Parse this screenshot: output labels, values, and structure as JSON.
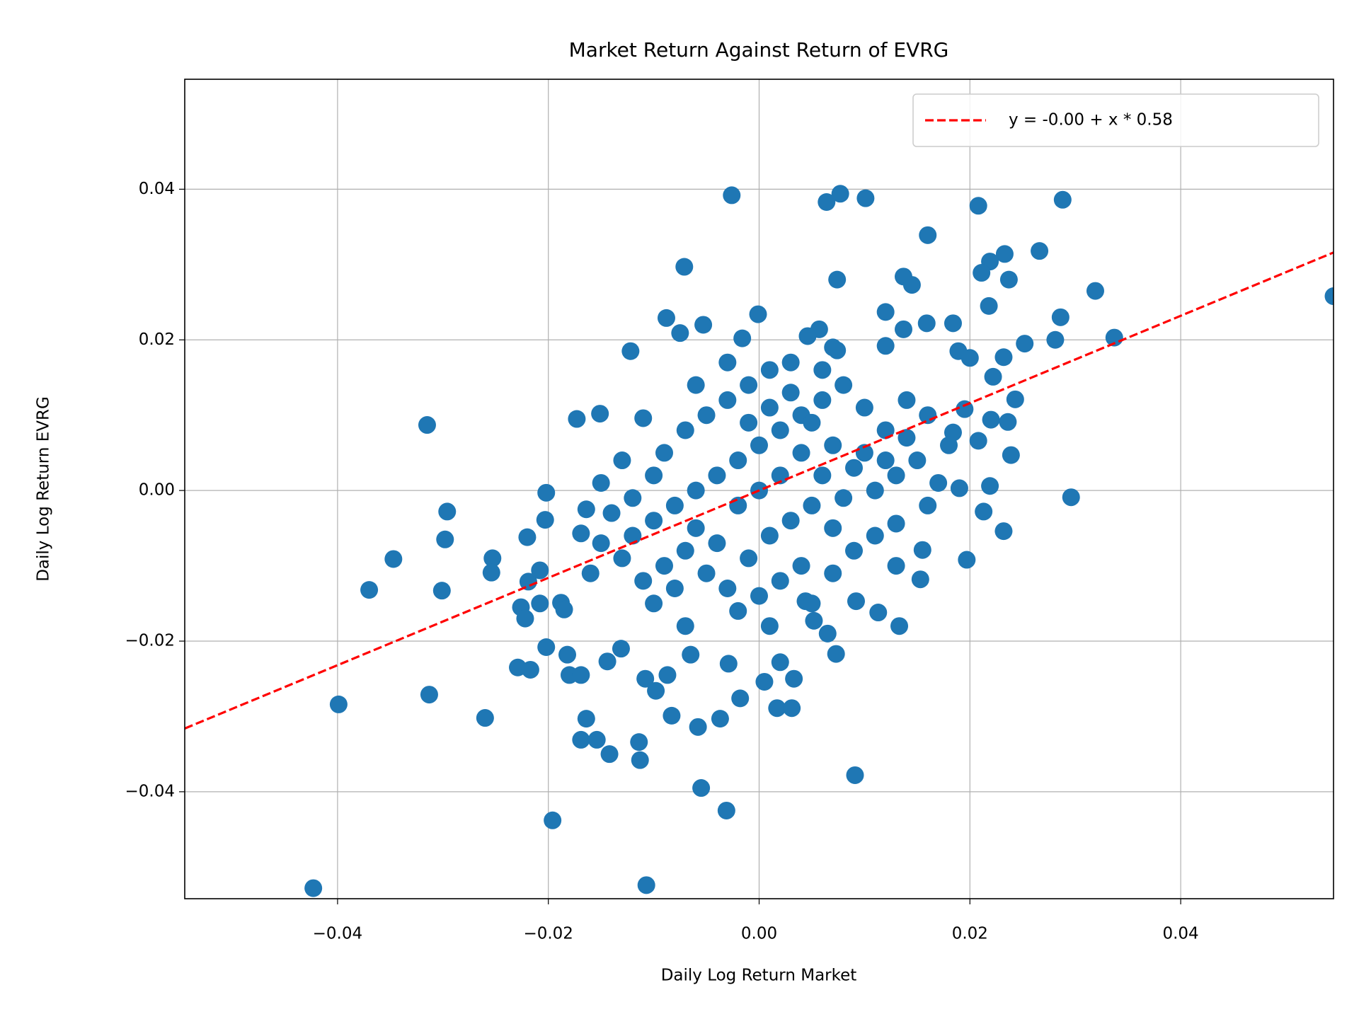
{
  "chart_data": {
    "type": "scatter",
    "title": "Market Return Against Return of EVRG",
    "x_label": "Daily Log Return Market",
    "y_label": "Daily Log Return EVRG",
    "xlim": [
      -0.0545,
      0.0545
    ],
    "ylim": [
      -0.0542,
      0.0546
    ],
    "xticks": [
      {
        "value": -0.04,
        "label": "−0.04"
      },
      {
        "value": -0.02,
        "label": "−0.02"
      },
      {
        "value": 0,
        "label": "0.00"
      },
      {
        "value": 0.02,
        "label": "0.02"
      },
      {
        "value": 0.04,
        "label": "0.04"
      }
    ],
    "yticks": [
      {
        "value": -0.04,
        "label": "−0.04"
      },
      {
        "value": -0.02,
        "label": "−0.02"
      },
      {
        "value": 0,
        "label": "0.00"
      },
      {
        "value": 0.02,
        "label": "0.02"
      },
      {
        "value": 0.04,
        "label": "0.04"
      }
    ],
    "grid": true,
    "legend": "upper right",
    "color": "#1f77b4",
    "x": [
      -0.0423,
      -0.0107,
      -0.0196,
      -0.0031,
      -0.0055,
      0.0091,
      -0.0113,
      -0.0142,
      -0.0114,
      -0.0169,
      -0.0154,
      -0.0164,
      -0.026,
      -0.0083,
      -0.0058,
      -0.0037,
      0.0017,
      0.0031,
      -0.0018,
      0.0005,
      0.0033,
      -0.0399,
      -0.0313,
      -0.0229,
      -0.0217,
      -0.0202,
      -0.018,
      -0.0169,
      -0.0144,
      -0.0131,
      -0.0182,
      -0.0108,
      -0.0087,
      -0.0098,
      -0.0065,
      -0.0029,
      0.002,
      0.0073,
      0.0065,
      0.0052,
      0.0044,
      0.0092,
      0.0113,
      0.0133,
      0.0153,
      0.0197,
      0.0155,
      0.013,
      0.0232,
      0.0213,
      0.0296,
      0.0219,
      0.019,
      0.0239,
      0.0236,
      0.022,
      0.0243,
      0.0195,
      0.0184,
      0.0208,
      0.0222,
      0.0232,
      0.0252,
      0.0281,
      0.0337,
      0.0545,
      0.0319,
      0.0286,
      0.0266,
      0.0237,
      0.0233,
      0.0219,
      0.0211,
      0.0218,
      0.0288,
      0.0208,
      0.016,
      0.0101,
      0.0077,
      0.0064,
      -0.0026,
      0.0074,
      0.0137,
      0.0145,
      0.012,
      0.0137,
      0.0159,
      0.0184,
      0.0189,
      0.02,
      -0.0071,
      -0.0001,
      -0.0088,
      -0.0053,
      -0.0075,
      -0.0122,
      -0.0016,
      0.0057,
      0.0046,
      0.0074,
      0.012,
      -0.0315,
      -0.0151,
      -0.0173,
      -0.011,
      -0.0202,
      -0.0347,
      -0.037,
      -0.0296,
      -0.0298,
      -0.0301,
      -0.0253,
      -0.0254,
      -0.022,
      -0.0203,
      -0.0219,
      -0.0208,
      -0.0226,
      -0.0222,
      -0.0208,
      -0.0188,
      -0.0185,
      -0.0164,
      -0.0169,
      -0.012,
      -0.01,
      -0.008,
      -0.006,
      -0.004,
      -0.002,
      0,
      0.002,
      0.004,
      0.006,
      0.008,
      -0.009,
      -0.007,
      -0.005,
      -0.003,
      -0.001,
      0.001,
      0.003,
      0.005,
      0.007,
      0.009,
      0.011,
      0.013,
      0.015,
      0.012,
      0.01,
      0.014,
      0.016,
      0.018,
      0.017,
      -0.011,
      -0.009,
      -0.007,
      -0.005,
      -0.003,
      -0.001,
      0.001,
      0.003,
      0.005,
      0.007,
      0.009,
      0.011,
      0.004,
      0.002,
      0,
      -0.002,
      -0.004,
      -0.006,
      -0.008,
      -0.01,
      -0.013,
      -0.015,
      -0.014,
      -0.016,
      -0.012,
      -0.01,
      -0.013,
      0.006,
      0.008,
      0.01,
      0.012,
      0.014,
      0.002,
      0,
      -0.002,
      0.004,
      -0.001,
      0.001,
      0.003,
      0.006,
      -0.003,
      0.007,
      -0.006,
      0.013,
      0.007,
      -0.007,
      0.001,
      0.005,
      -0.015,
      0.016
    ],
    "values": [
      -0.0528,
      -0.0524,
      -0.0438,
      -0.0425,
      -0.0395,
      -0.0378,
      -0.0358,
      -0.035,
      -0.0334,
      -0.0331,
      -0.0331,
      -0.0303,
      -0.0302,
      -0.0299,
      -0.0314,
      -0.0303,
      -0.0289,
      -0.0289,
      -0.0276,
      -0.0254,
      -0.025,
      -0.0284,
      -0.0271,
      -0.0235,
      -0.0238,
      -0.0208,
      -0.0245,
      -0.0245,
      -0.0227,
      -0.021,
      -0.0218,
      -0.025,
      -0.0245,
      -0.0266,
      -0.0218,
      -0.023,
      -0.0228,
      -0.0217,
      -0.019,
      -0.0173,
      -0.0147,
      -0.0147,
      -0.0162,
      -0.018,
      -0.0118,
      -0.0092,
      -0.0079,
      -0.0044,
      -0.0054,
      -0.0028,
      -0.0009,
      0.0006,
      0.0003,
      0.0047,
      0.0091,
      0.0094,
      0.0121,
      0.0108,
      0.0077,
      0.0066,
      0.0151,
      0.0177,
      0.0195,
      0.02,
      0.0203,
      0.0258,
      0.0265,
      0.023,
      0.0318,
      0.028,
      0.0314,
      0.0304,
      0.0289,
      0.0245,
      0.0386,
      0.0378,
      0.0339,
      0.0388,
      0.0394,
      0.0383,
      0.0392,
      0.028,
      0.0284,
      0.0273,
      0.0237,
      0.0214,
      0.0222,
      0.0222,
      0.0185,
      0.0176,
      0.0297,
      0.0234,
      0.0229,
      0.022,
      0.0209,
      0.0185,
      0.0202,
      0.0214,
      0.0205,
      0.0186,
      0.0192,
      0.0087,
      0.0102,
      0.0095,
      0.0096,
      -0.0003,
      -0.0091,
      -0.0132,
      -0.0028,
      -0.0065,
      -0.0133,
      -0.009,
      -0.0109,
      -0.0062,
      -0.0039,
      -0.0121,
      -0.0106,
      -0.0155,
      -0.017,
      -0.015,
      -0.0149,
      -0.0158,
      -0.0025,
      -0.0057,
      -0.006,
      -0.004,
      -0.002,
      0,
      0.002,
      0.004,
      0.006,
      0.008,
      0.01,
      0.012,
      0.014,
      0.005,
      0.008,
      0.01,
      0.012,
      0.014,
      0.016,
      0.013,
      0.009,
      0.006,
      0.003,
      0,
      0.002,
      0.004,
      0.008,
      0.011,
      0.012,
      0.01,
      0.006,
      0.001,
      -0.012,
      -0.01,
      -0.008,
      -0.011,
      -0.013,
      -0.009,
      -0.006,
      -0.004,
      -0.002,
      -0.005,
      -0.008,
      -0.006,
      -0.01,
      -0.012,
      -0.014,
      -0.016,
      -0.007,
      -0.005,
      -0.013,
      -0.015,
      -0.009,
      -0.007,
      -0.003,
      -0.011,
      -0.001,
      0.002,
      0.004,
      0.002,
      -0.001,
      0.005,
      0.004,
      0.007,
      0.002,
      0,
      -0.002,
      0.005,
      0.009,
      0.011,
      0.017,
      0.016,
      0.017,
      0.019,
      0.014,
      -0.01,
      -0.011,
      -0.018,
      -0.018,
      -0.015,
      0.001,
      -0.002
    ],
    "fit": {
      "name": "y = -0.00 + x * 0.58",
      "color": "#ff0000",
      "x": [
        -0.0545,
        0.0545
      ],
      "values": [
        -0.0316,
        0.0316
      ]
    }
  }
}
